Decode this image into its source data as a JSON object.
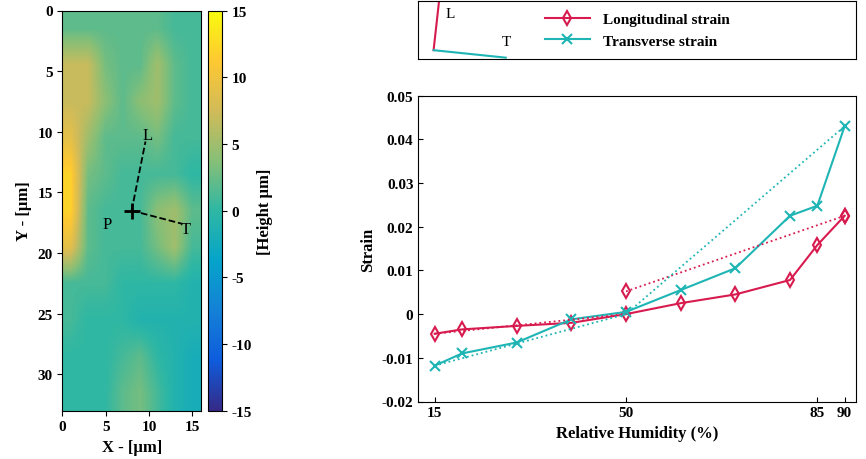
{
  "chart_data": [
    {
      "type": "heatmap",
      "xlabel": "X - [μm]",
      "ylabel": "Y - [μm]",
      "xlim": [
        0,
        16
      ],
      "ylim": [
        33,
        0
      ],
      "xticks": [
        0,
        5,
        10,
        15
      ],
      "yticks": [
        0,
        5,
        10,
        15,
        20,
        25,
        30
      ],
      "cells": [
        [
          2,
          2,
          2,
          2,
          2,
          2,
          1,
          1
        ],
        [
          7,
          7,
          3,
          2,
          2,
          5,
          2,
          1
        ],
        [
          7,
          7,
          4,
          2,
          4,
          5,
          2,
          1
        ],
        [
          9,
          5,
          2,
          2,
          2,
          3,
          1,
          1
        ],
        [
          12,
          3,
          2,
          1,
          1,
          1,
          1,
          0
        ],
        [
          12,
          2,
          1,
          1,
          1,
          4,
          5,
          2
        ],
        [
          9,
          2,
          1,
          1,
          1,
          3,
          5,
          1
        ],
        [
          1,
          1,
          1,
          0,
          0,
          0,
          0,
          -1
        ],
        [
          1,
          0,
          0,
          0,
          -1,
          -1,
          -1,
          -1
        ],
        [
          0,
          0,
          0,
          1,
          2,
          0,
          -1,
          -2
        ],
        [
          0,
          0,
          0,
          2,
          3,
          1,
          -1,
          -2
        ]
      ],
      "colorbar": {
        "label": "[Height μm]",
        "range": [
          -15,
          15
        ],
        "ticks": [
          -15,
          -10,
          -5,
          0,
          5,
          10,
          15
        ]
      },
      "point": {
        "x": 8,
        "y": 16.5,
        "marker": "plus",
        "color": "#000000"
      },
      "lines": [
        {
          "x": [
            8,
            9.6
          ],
          "y": [
            16.5,
            10.8
          ],
          "line_style": "dashed",
          "color": "#000000"
        },
        {
          "x": [
            8,
            13.9
          ],
          "y": [
            16.5,
            17.6
          ],
          "line_style": "dashed",
          "color": "#000000"
        }
      ],
      "annotations": [
        {
          "text": "L",
          "x": 9.8,
          "y": 10.3
        },
        {
          "text": "T",
          "x": 14.3,
          "y": 18.0
        },
        {
          "text": "P",
          "x": 5.2,
          "y": 17.6
        }
      ]
    },
    {
      "type": "line",
      "xlabel": "Relative Humidity (%)",
      "ylabel": "Strain",
      "xlim": [
        12,
        92
      ],
      "ylim": [
        -0.02,
        0.05
      ],
      "xticks": [
        15,
        50,
        85,
        90
      ],
      "yticks": [
        -0.02,
        -0.01,
        0,
        0.01,
        0.02,
        0.03,
        0.04,
        0.05
      ],
      "x": [
        15,
        20,
        30,
        40,
        50,
        60,
        70,
        80,
        85,
        90
      ],
      "series": [
        {
          "name": "Longitudinal strain",
          "color": "#d81b4f",
          "marker": "diamond",
          "line_style": "solid",
          "values": [
            -0.0045,
            -0.0035,
            -0.0027,
            -0.002,
            0.0,
            0.0025,
            0.0045,
            0.0078,
            0.0158,
            0.0225
          ]
        },
        {
          "name": "Transverse strain",
          "color": "#1fb5b5",
          "marker": "x",
          "line_style": "solid",
          "values": [
            -0.0118,
            -0.009,
            -0.0065,
            -0.0012,
            0.0005,
            0.0055,
            0.0105,
            0.0225,
            0.0248,
            0.043
          ]
        }
      ],
      "fit_lines": [
        {
          "color": "#d81b4f",
          "x": [
            15,
            50
          ],
          "values": [
            -0.0045,
            0.0
          ],
          "line_style": "dotted"
        },
        {
          "color": "#d81b4f",
          "x": [
            50,
            90
          ],
          "values": [
            0.0052,
            0.0225
          ],
          "line_style": "dotted",
          "marker": "diamond"
        },
        {
          "color": "#1fb5b5",
          "x": [
            15,
            50,
            90
          ],
          "values": [
            -0.0118,
            0.0,
            0.043
          ],
          "line_style": "dotted"
        }
      ],
      "legend": "center",
      "inset_labels": [
        "L",
        "T"
      ]
    }
  ]
}
